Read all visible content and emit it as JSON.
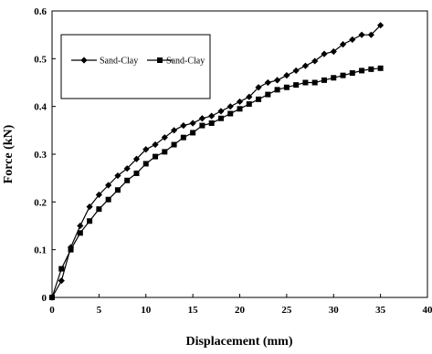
{
  "chart_data": {
    "type": "line",
    "title": "",
    "xlabel": "Displacement (mm)",
    "ylabel": "Force (kN)",
    "xlim": [
      0,
      40
    ],
    "ylim": [
      0,
      0.6
    ],
    "xticks": [
      "0",
      "5",
      "10",
      "15",
      "20",
      "25",
      "30",
      "35",
      "40"
    ],
    "yticks": [
      "0",
      "0.1",
      "0.2",
      "0.3",
      "0.4",
      "0.5",
      "0.6"
    ],
    "grid": false,
    "legend_position": "top-left",
    "series": [
      {
        "name": "Sand-Clay",
        "marker": "diamond",
        "color": "#000000",
        "x": [
          0,
          1,
          2,
          3,
          4,
          5,
          6,
          7,
          8,
          9,
          10,
          11,
          12,
          13,
          14,
          15,
          16,
          17,
          18,
          19,
          20,
          21,
          22,
          23,
          24,
          25,
          26,
          27,
          28,
          29,
          30,
          31,
          32,
          33,
          34,
          35
        ],
        "y": [
          0.0,
          0.035,
          0.105,
          0.15,
          0.19,
          0.215,
          0.235,
          0.255,
          0.27,
          0.29,
          0.31,
          0.32,
          0.335,
          0.35,
          0.36,
          0.365,
          0.375,
          0.38,
          0.39,
          0.4,
          0.41,
          0.42,
          0.44,
          0.45,
          0.455,
          0.465,
          0.475,
          0.485,
          0.495,
          0.51,
          0.515,
          0.53,
          0.54,
          0.55,
          0.55,
          0.57
        ]
      },
      {
        "name": "Sand-Clay",
        "marker": "square",
        "color": "#000000",
        "x": [
          0,
          1,
          2,
          3,
          4,
          5,
          6,
          7,
          8,
          9,
          10,
          11,
          12,
          13,
          14,
          15,
          16,
          17,
          18,
          19,
          20,
          21,
          22,
          23,
          24,
          25,
          26,
          27,
          28,
          29,
          30,
          31,
          32,
          33,
          34,
          35
        ],
        "y": [
          0.0,
          0.06,
          0.1,
          0.135,
          0.16,
          0.185,
          0.205,
          0.225,
          0.245,
          0.26,
          0.28,
          0.295,
          0.305,
          0.32,
          0.335,
          0.345,
          0.36,
          0.365,
          0.375,
          0.385,
          0.395,
          0.405,
          0.415,
          0.425,
          0.435,
          0.44,
          0.445,
          0.45,
          0.45,
          0.455,
          0.46,
          0.465,
          0.47,
          0.475,
          0.478,
          0.48
        ]
      }
    ]
  }
}
